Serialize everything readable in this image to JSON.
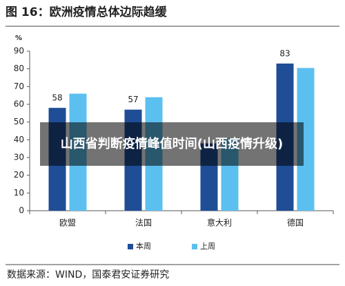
{
  "chart_data": {
    "type": "bar",
    "title": "图 16：欧洲疫情总体边际趋缓",
    "y_unit": "%",
    "categories": [
      "欧盟",
      "法国",
      "意大利",
      "德国"
    ],
    "series": [
      {
        "name": "本周",
        "color": "#1f4e96",
        "values": [
          58,
          57,
          38,
          83
        ],
        "value_labels": [
          "58",
          "57",
          null,
          "83"
        ]
      },
      {
        "name": "上周",
        "color": "#5bc0f0",
        "values": [
          66,
          64,
          41,
          80.5
        ]
      }
    ],
    "ylim": [
      0,
      90
    ],
    "yticks": [
      0,
      10,
      20,
      30,
      40,
      50,
      60,
      70,
      80,
      90
    ],
    "source": "数据来源：WIND，国泰君安证券研究"
  },
  "overlay_text": "山西省判断疫情峰值时间(山西疫情升级)"
}
